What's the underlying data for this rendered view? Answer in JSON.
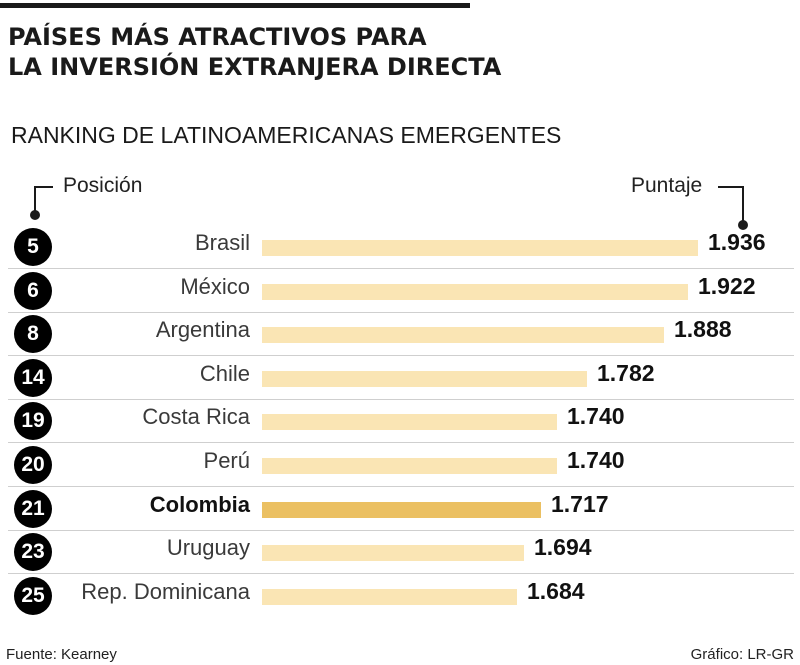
{
  "title_line1": "PAÍSES MÁS ATRACTIVOS PARA",
  "title_line2": "LA INVERSIÓN EXTRANJERA DIRECTA",
  "subtitle": "RANKING DE LATINOAMERICANAS EMERGENTES",
  "position_label": "Posición",
  "score_label": "Puntaje",
  "source": "Fuente: Kearney",
  "credit": "Gráfico: LR-GR",
  "colors": {
    "bar": "#fae5b4",
    "highlight_bar": "#ebc062",
    "circle": "#000000"
  },
  "chart_data": {
    "type": "bar",
    "orientation": "horizontal",
    "title": "PAÍSES MÁS ATRACTIVOS PARA LA INVERSIÓN EXTRANJERA DIRECTA",
    "subtitle": "RANKING DE LATINOAMERICANAS EMERGENTES",
    "categories": [
      "Brasil",
      "México",
      "Argentina",
      "Chile",
      "Costa Rica",
      "Perú",
      "Colombia",
      "Uruguay",
      "Rep. Dominicana"
    ],
    "positions": [
      "5",
      "6",
      "8",
      "14",
      "19",
      "20",
      "21",
      "23",
      "25"
    ],
    "values": [
      1.936,
      1.922,
      1.888,
      1.782,
      1.74,
      1.74,
      1.717,
      1.694,
      1.684
    ],
    "value_labels": [
      "1.936",
      "1.922",
      "1.888",
      "1.782",
      "1.740",
      "1.740",
      "1.717",
      "1.694",
      "1.684"
    ],
    "highlight": "Colombia",
    "xlim": [
      1.33,
      1.936
    ],
    "grid": false,
    "legend": "none"
  }
}
